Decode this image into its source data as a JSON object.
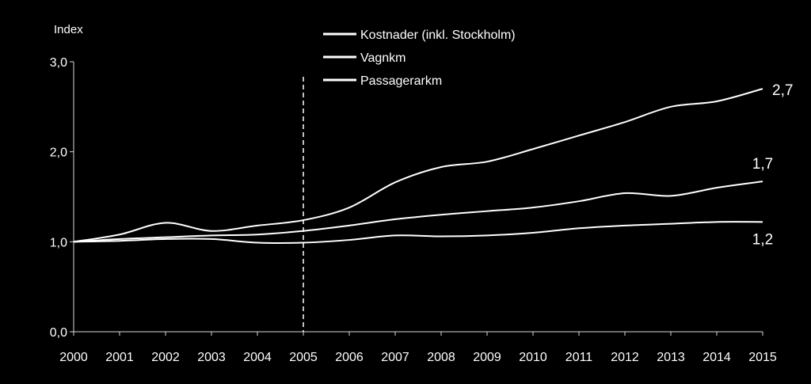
{
  "chart_data": {
    "type": "line",
    "ylabel": "Index",
    "ylim": [
      0,
      3
    ],
    "yticks": [
      "0,0",
      "1,0",
      "2,0",
      "3,0"
    ],
    "x": [
      "2000",
      "2001",
      "2002",
      "2003",
      "2004",
      "2005",
      "2006",
      "2007",
      "2008",
      "2009",
      "2010",
      "2011",
      "2012",
      "2013",
      "2014",
      "2015"
    ],
    "reference_line_x": "2005",
    "series": [
      {
        "name": "Kostnader (inkl. Stockholm)",
        "end_label": "2,7",
        "values": [
          1.0,
          1.08,
          1.21,
          1.12,
          1.18,
          1.24,
          1.38,
          1.66,
          1.83,
          1.89,
          2.03,
          2.18,
          2.33,
          2.5,
          2.56,
          2.7
        ]
      },
      {
        "name": "Vagnkm",
        "end_label": "1,7",
        "values": [
          1.0,
          1.03,
          1.05,
          1.07,
          1.08,
          1.12,
          1.18,
          1.25,
          1.3,
          1.34,
          1.38,
          1.45,
          1.54,
          1.51,
          1.6,
          1.67
        ]
      },
      {
        "name": "Passagerarkm",
        "end_label": "1,2",
        "values": [
          1.0,
          1.01,
          1.03,
          1.03,
          0.99,
          0.99,
          1.02,
          1.07,
          1.06,
          1.07,
          1.1,
          1.15,
          1.18,
          1.2,
          1.22,
          1.22
        ]
      }
    ],
    "line_color": "#ffffff",
    "background": "#000000",
    "grid": false,
    "legend_position": "top-center"
  }
}
